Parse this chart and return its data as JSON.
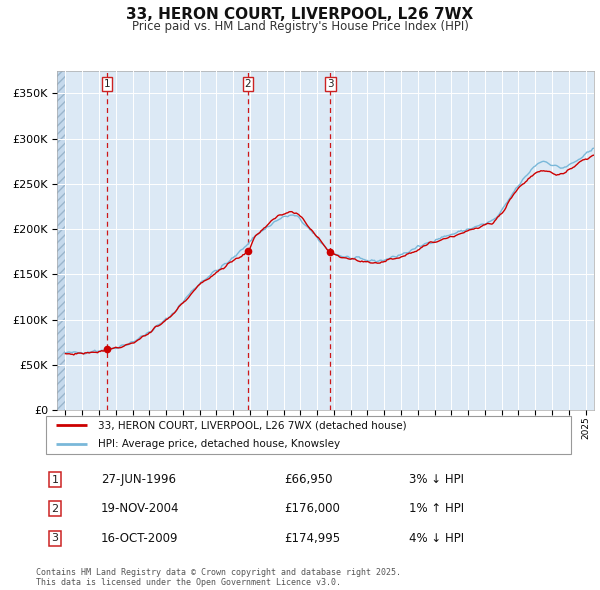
{
  "title": "33, HERON COURT, LIVERPOOL, L26 7WX",
  "subtitle": "Price paid vs. HM Land Registry's House Price Index (HPI)",
  "legend_label_red": "33, HERON COURT, LIVERPOOL, L26 7WX (detached house)",
  "legend_label_blue": "HPI: Average price, detached house, Knowsley",
  "transactions": [
    {
      "label": "1",
      "date": "27-JUN-1996",
      "price": 66950,
      "pct": "3%",
      "dir": "↓",
      "x": 1996.49
    },
    {
      "label": "2",
      "date": "19-NOV-2004",
      "price": 176000,
      "pct": "1%",
      "dir": "↑",
      "x": 2004.88
    },
    {
      "label": "3",
      "date": "16-OCT-2009",
      "price": 174995,
      "pct": "4%",
      "dir": "↓",
      "x": 2009.79
    }
  ],
  "footer": "Contains HM Land Registry data © Crown copyright and database right 2025.\nThis data is licensed under the Open Government Licence v3.0.",
  "background_color": "#dce9f5",
  "grid_color": "#ffffff",
  "red_line_color": "#cc0000",
  "blue_line_color": "#7ab8d9",
  "vline_color": "#cc0000",
  "ylim": [
    0,
    375000
  ],
  "yticks": [
    0,
    50000,
    100000,
    150000,
    200000,
    250000,
    300000,
    350000
  ],
  "xmin": 1993.5,
  "xmax": 2025.5
}
